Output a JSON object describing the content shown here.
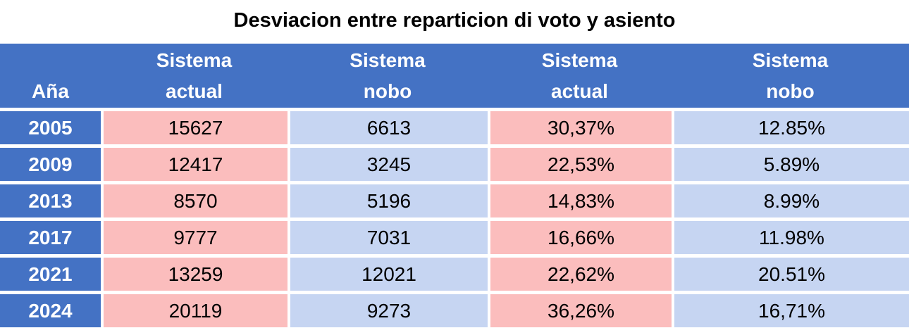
{
  "title": "Desviacion entre reparticion di voto y asiento",
  "header": {
    "year": "Aña",
    "cols": [
      {
        "line1": "Sistema",
        "line2": "actual"
      },
      {
        "line1": "Sistema",
        "line2": "nobo"
      },
      {
        "line1": "Sistema",
        "line2": "actual"
      },
      {
        "line1": "Sistema",
        "line2": "nobo"
      }
    ]
  },
  "rows": [
    {
      "year": "2005",
      "values": [
        "15627",
        "6613",
        "30,37%",
        "12.85%"
      ]
    },
    {
      "year": "2009",
      "values": [
        "12417",
        "3245",
        "22,53%",
        "5.89%"
      ]
    },
    {
      "year": "2013",
      "values": [
        "8570",
        "5196",
        "14,83%",
        "8.99%"
      ]
    },
    {
      "year": "2017",
      "values": [
        "9777",
        "7031",
        "16,66%",
        "11.98%"
      ]
    },
    {
      "year": "2021",
      "values": [
        "13259",
        "12021",
        "22,62%",
        "20.51%"
      ]
    },
    {
      "year": "2024",
      "values": [
        "20119",
        "9273",
        "36,26%",
        "16,71%"
      ]
    }
  ],
  "colors": {
    "header_bg": "#4472c4",
    "year_cell_bg": "#4472c4",
    "actual_col_bg": "#fbbdbd",
    "nobo_col_bg": "#c6d5f2",
    "gridline": "#ffffff",
    "header_text": "#ffffff",
    "body_text": "#000000",
    "title_text": "#000000"
  },
  "chart_data": {
    "type": "table",
    "title": "Desviacion entre reparticion di voto y asiento",
    "columns": [
      "Aña",
      "Sistema actual",
      "Sistema nobo",
      "Sistema actual",
      "Sistema nobo"
    ],
    "rows": [
      [
        "2005",
        "15627",
        "6613",
        "30,37%",
        "12.85%"
      ],
      [
        "2009",
        "12417",
        "3245",
        "22,53%",
        "5.89%"
      ],
      [
        "2013",
        "8570",
        "5196",
        "14,83%",
        "8.99%"
      ],
      [
        "2017",
        "9777",
        "7031",
        "16,66%",
        "11.98%"
      ],
      [
        "2021",
        "13259",
        "12021",
        "22,62%",
        "20.51%"
      ],
      [
        "2024",
        "20119",
        "9273",
        "36,26%",
        "16,71%"
      ]
    ]
  }
}
